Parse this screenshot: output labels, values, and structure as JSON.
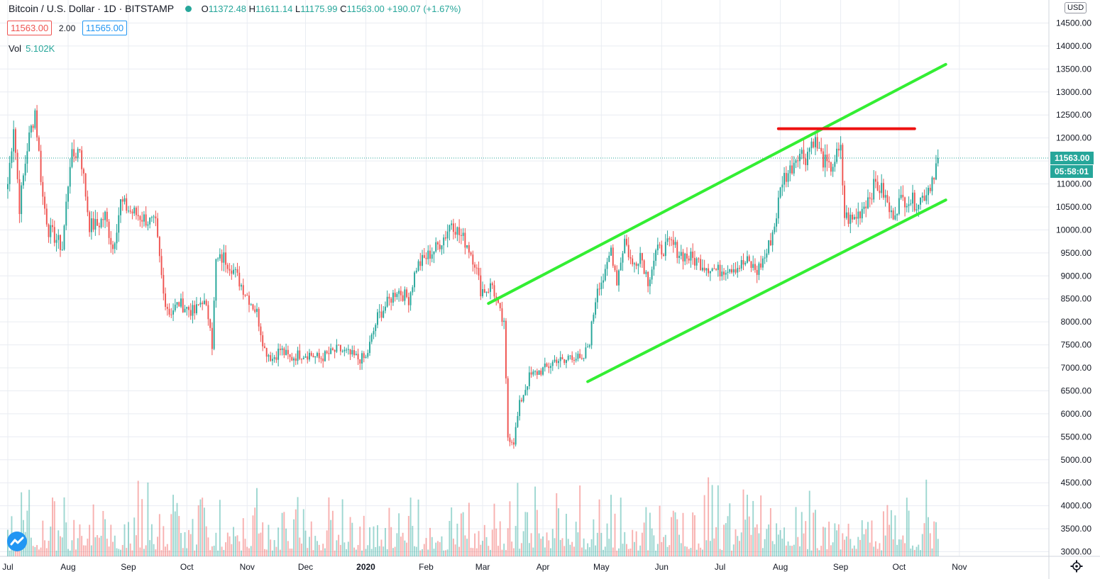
{
  "header": {
    "symbol_title": "Bitcoin / U.S. Dollar · 1D · BITSTAMP",
    "ohlc": {
      "o_label": "O",
      "o_value": "11372.48",
      "h_label": "H",
      "h_value": "11611.14",
      "l_label": "L",
      "l_value": "11175.99",
      "c_label": "C",
      "c_value": "11563.00",
      "change": "+190.07 (+1.67%)"
    },
    "bid": "11563.00",
    "spread": "2.00",
    "ask": "11565.00",
    "volume_label": "Vol",
    "volume_value": "5.102K"
  },
  "currency_button": "USD",
  "last_price_tag": "11563.00",
  "countdown_tag": "05:58:01",
  "icons": [
    "tradingview-logo-icon",
    "settings-gear-icon",
    "status-dot-icon"
  ],
  "colors": {
    "up": "#26a69a",
    "down": "#ef5350",
    "channel": "#33ee33",
    "resistance": "#ee1111",
    "grid": "#e9ecf2"
  },
  "chart_data": {
    "type": "candlestick",
    "symbol": "Bitcoin / U.S. Dollar",
    "interval": "1D",
    "exchange": "BITSTAMP",
    "y_axis": {
      "ticks": [
        3000,
        3500,
        4000,
        4500,
        5000,
        5500,
        6000,
        6500,
        7000,
        7500,
        8000,
        8500,
        9000,
        9500,
        10000,
        10500,
        11000,
        11500,
        12000,
        12500,
        13000,
        13500,
        14000,
        14500
      ],
      "tick_labels": [
        "3000.00",
        "3500.00",
        "4000.00",
        "4500.00",
        "5000.00",
        "5500.00",
        "6000.00",
        "6500.00",
        "7000.00",
        "7500.00",
        "8000.00",
        "8500.00",
        "9000.00",
        "9500.00",
        "10000.00",
        "10500.00",
        "11000.00",
        "11500.00",
        "12000.00",
        "12500.00",
        "13000.00",
        "13500.00",
        "14000.00",
        "14500.00"
      ],
      "range": [
        2900,
        15000
      ]
    },
    "x_axis": {
      "labels": [
        "Jul",
        "Aug",
        "Sep",
        "Oct",
        "Nov",
        "Dec",
        "2020",
        "Feb",
        "Mar",
        "Apr",
        "May",
        "Jun",
        "Jul",
        "Aug",
        "Sep",
        "Oct",
        "Nov"
      ],
      "label_days": [
        0,
        31,
        62,
        92,
        123,
        153,
        184,
        215,
        244,
        275,
        305,
        336,
        366,
        397,
        428,
        458,
        489
      ],
      "first_visible_day": -4,
      "last_visible_day": 535
    },
    "grid": true,
    "last_price": 11563.0,
    "price_path": [
      [
        0,
        11000
      ],
      [
        3,
        12300
      ],
      [
        6,
        10500
      ],
      [
        10,
        11800
      ],
      [
        14,
        12600
      ],
      [
        18,
        10700
      ],
      [
        21,
        10000
      ],
      [
        25,
        9800
      ],
      [
        28,
        9600
      ],
      [
        32,
        11500
      ],
      [
        37,
        11800
      ],
      [
        42,
        10100
      ],
      [
        46,
        10100
      ],
      [
        50,
        10300
      ],
      [
        54,
        9600
      ],
      [
        58,
        10600
      ],
      [
        63,
        10400
      ],
      [
        68,
        10300
      ],
      [
        72,
        10200
      ],
      [
        76,
        10100
      ],
      [
        80,
        8600
      ],
      [
        83,
        8200
      ],
      [
        88,
        8400
      ],
      [
        92,
        8300
      ],
      [
        96,
        8200
      ],
      [
        100,
        8500
      ],
      [
        104,
        8000
      ],
      [
        105,
        7500
      ],
      [
        107,
        9300
      ],
      [
        111,
        9400
      ],
      [
        115,
        9200
      ],
      [
        120,
        8800
      ],
      [
        124,
        8500
      ],
      [
        128,
        8200
      ],
      [
        132,
        7400
      ],
      [
        136,
        7200
      ],
      [
        140,
        7400
      ],
      [
        145,
        7200
      ],
      [
        150,
        7300
      ],
      [
        155,
        7300
      ],
      [
        160,
        7200
      ],
      [
        165,
        7300
      ],
      [
        170,
        7400
      ],
      [
        175,
        7300
      ],
      [
        180,
        7200
      ],
      [
        184,
        7200
      ],
      [
        186,
        7500
      ],
      [
        190,
        8100
      ],
      [
        195,
        8400
      ],
      [
        200,
        8700
      ],
      [
        206,
        8500
      ],
      [
        210,
        9200
      ],
      [
        215,
        9400
      ],
      [
        220,
        9600
      ],
      [
        225,
        9900
      ],
      [
        228,
        10200
      ],
      [
        232,
        9900
      ],
      [
        236,
        9700
      ],
      [
        240,
        9300
      ],
      [
        243,
        8700
      ],
      [
        246,
        8700
      ],
      [
        249,
        8800
      ],
      [
        252,
        8300
      ],
      [
        255,
        7900
      ],
      [
        257,
        5500
      ],
      [
        260,
        5400
      ],
      [
        263,
        6200
      ],
      [
        268,
        6800
      ],
      [
        272,
        6900
      ],
      [
        277,
        7000
      ],
      [
        282,
        7200
      ],
      [
        286,
        7100
      ],
      [
        289,
        7300
      ],
      [
        293,
        7200
      ],
      [
        295,
        7100
      ],
      [
        299,
        7600
      ],
      [
        303,
        8800
      ],
      [
        307,
        9000
      ],
      [
        310,
        9600
      ],
      [
        313,
        8900
      ],
      [
        317,
        9800
      ],
      [
        321,
        9200
      ],
      [
        325,
        9500
      ],
      [
        329,
        8900
      ],
      [
        333,
        9500
      ],
      [
        337,
        9600
      ],
      [
        341,
        9700
      ],
      [
        345,
        9500
      ],
      [
        350,
        9400
      ],
      [
        355,
        9300
      ],
      [
        360,
        9200
      ],
      [
        365,
        9100
      ],
      [
        370,
        9200
      ],
      [
        375,
        9200
      ],
      [
        380,
        9300
      ],
      [
        385,
        9100
      ],
      [
        390,
        9500
      ],
      [
        394,
        10100
      ],
      [
        398,
        11100
      ],
      [
        402,
        11300
      ],
      [
        406,
        11700
      ],
      [
        410,
        11600
      ],
      [
        414,
        12000
      ],
      [
        418,
        11600
      ],
      [
        422,
        11300
      ],
      [
        426,
        11600
      ],
      [
        428,
        11700
      ],
      [
        430,
        10300
      ],
      [
        434,
        10200
      ],
      [
        438,
        10400
      ],
      [
        442,
        10700
      ],
      [
        446,
        11000
      ],
      [
        450,
        10800
      ],
      [
        454,
        10300
      ],
      [
        458,
        10600
      ],
      [
        462,
        10700
      ],
      [
        466,
        10600
      ],
      [
        470,
        10700
      ],
      [
        474,
        11000
      ],
      [
        478,
        11563
      ]
    ],
    "candle_count": 479,
    "volume_visible": true,
    "drawings": [
      {
        "kind": "trendline",
        "role": "channel-upper",
        "color": "green",
        "from": {
          "day": 247,
          "price": 8400
        },
        "to": {
          "day": 482,
          "price": 13600
        }
      },
      {
        "kind": "trendline",
        "role": "channel-lower",
        "color": "green",
        "from": {
          "day": 298,
          "price": 6700
        },
        "to": {
          "day": 482,
          "price": 10650
        }
      },
      {
        "kind": "horizontal-segment",
        "role": "resistance",
        "color": "red",
        "from": {
          "day": 396,
          "price": 12200
        },
        "to": {
          "day": 466,
          "price": 12200
        }
      }
    ]
  }
}
